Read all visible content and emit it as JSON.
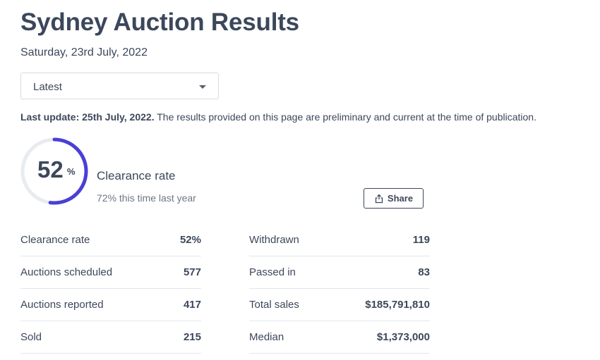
{
  "header": {
    "title": "Sydney Auction Results",
    "date": "Saturday, 23rd July, 2022"
  },
  "filter": {
    "selected": "Latest"
  },
  "update": {
    "bold": "Last update: 25th July, 2022.",
    "text": " The results provided on this page are preliminary and current at the time of publication."
  },
  "gauge": {
    "value": "52",
    "unit": "%",
    "fraction": 0.52,
    "label": "Clearance rate",
    "sub": "72% this time last year",
    "accent": "#4a3fd6",
    "track": "#e8ebf0"
  },
  "share": {
    "label": "Share",
    "icon": "share-icon"
  },
  "stats_left": [
    {
      "label": "Clearance rate",
      "value": "52%"
    },
    {
      "label": "Auctions scheduled",
      "value": "577"
    },
    {
      "label": "Auctions reported",
      "value": "417"
    },
    {
      "label": "Sold",
      "value": "215"
    }
  ],
  "stats_right": [
    {
      "label": "Withdrawn",
      "value": "119"
    },
    {
      "label": "Passed in",
      "value": "83"
    },
    {
      "label": "Total sales",
      "value": "$185,791,810"
    },
    {
      "label": "Median",
      "value": "$1,373,000"
    }
  ]
}
